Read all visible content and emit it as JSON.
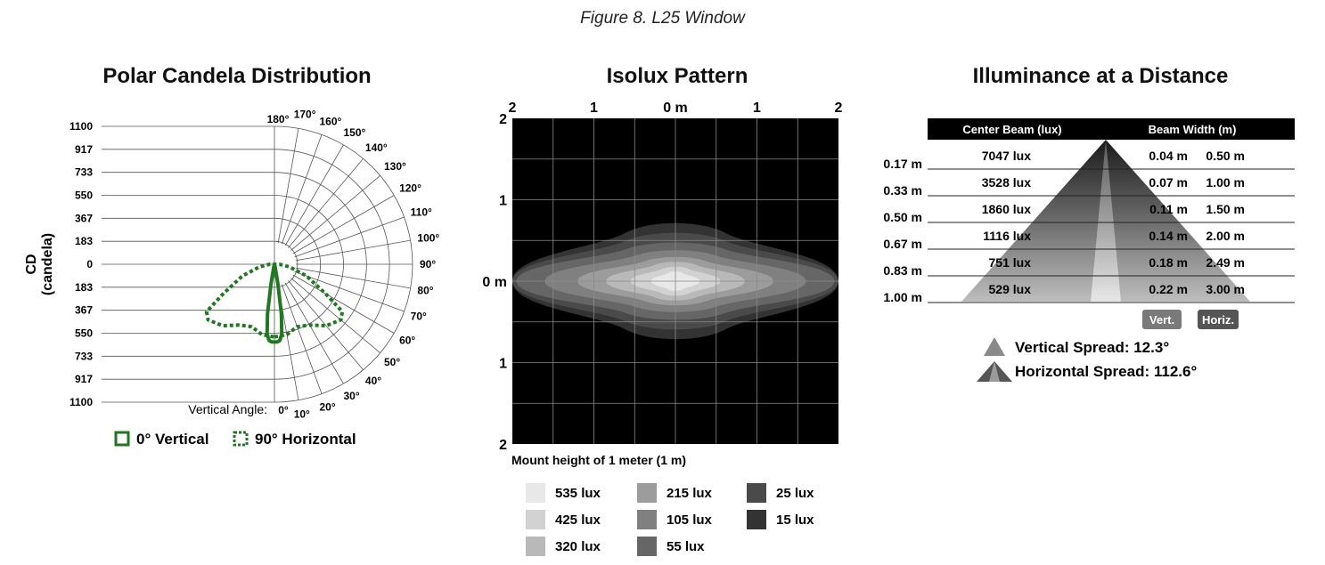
{
  "figure_caption": "Figure 8. L25 Window",
  "panels": {
    "polar_title": "Polar Candela Distribution",
    "isolux_title": "Isolux Pattern",
    "illum_title": "Illuminance at a Distance"
  },
  "colors": {
    "series_green": "#1f7a1f",
    "isolux_bg": "#000000",
    "header_bg": "#000000"
  },
  "chart_data": [
    {
      "type": "polar",
      "title": "Polar Candela Distribution",
      "ylabel_line1": "CD",
      "ylabel_line2": "(candela)",
      "radial_ticks_top": [
        "1100",
        "917",
        "733",
        "550",
        "367",
        "183",
        "0"
      ],
      "radial_ticks_bottom": [
        "183",
        "367",
        "550",
        "733",
        "917",
        "1100"
      ],
      "rmax": 1100,
      "angle_ticks": [
        "0°",
        "10°",
        "20°",
        "30°",
        "40°",
        "50°",
        "60°",
        "70°",
        "80°",
        "90°",
        "100°",
        "110°",
        "120°",
        "130°",
        "140°",
        "150°",
        "160°",
        "170°",
        "180°"
      ],
      "angle_axis_label": "Vertical Angle:",
      "legend_position": "bottom",
      "series": [
        {
          "name": "0° Vertical",
          "style": "solid",
          "points": [
            [
              0,
              620
            ],
            [
              2,
              620
            ],
            [
              4,
              610
            ],
            [
              6,
              560
            ],
            [
              8,
              400
            ],
            [
              10,
              160
            ],
            [
              15,
              20
            ],
            [
              90,
              0
            ]
          ]
        },
        {
          "name": "90° Horizontal",
          "style": "dotted",
          "points": [
            [
              0,
              580
            ],
            [
              10,
              570
            ],
            [
              20,
              530
            ],
            [
              30,
              560
            ],
            [
              40,
              640
            ],
            [
              50,
              690
            ],
            [
              55,
              660
            ],
            [
              60,
              470
            ],
            [
              70,
              270
            ],
            [
              80,
              120
            ],
            [
              90,
              40
            ],
            [
              100,
              0
            ]
          ]
        }
      ]
    },
    {
      "type": "heatmap",
      "title": "Isolux Pattern",
      "x_ticks": [
        "2",
        "1",
        "0 m",
        "1",
        "2"
      ],
      "y_ticks": [
        "2",
        "1",
        "0 m",
        "1",
        "2"
      ],
      "xlim": [
        -2,
        2
      ],
      "ylim": [
        -2,
        2
      ],
      "note": "Mount height of 1 meter (1 m)",
      "contours": [
        {
          "lux": 15,
          "label": "15 lux",
          "color": "#333333",
          "half_width": 2.0,
          "half_height": 0.6
        },
        {
          "lux": 25,
          "label": "25 lux",
          "color": "#4a4a4a",
          "half_width": 2.0,
          "half_height": 0.5
        },
        {
          "lux": 55,
          "label": "55 lux",
          "color": "#666666",
          "half_width": 1.95,
          "half_height": 0.4
        },
        {
          "lux": 105,
          "label": "105 lux",
          "color": "#808080",
          "half_width": 1.6,
          "half_height": 0.32
        },
        {
          "lux": 215,
          "label": "215 lux",
          "color": "#9c9c9c",
          "half_width": 1.2,
          "half_height": 0.25
        },
        {
          "lux": 320,
          "label": "320 lux",
          "color": "#b9b9b9",
          "half_width": 0.85,
          "half_height": 0.2
        },
        {
          "lux": 425,
          "label": "425 lux",
          "color": "#d2d2d2",
          "half_width": 0.55,
          "half_height": 0.15
        },
        {
          "lux": 535,
          "label": "535 lux",
          "color": "#e8e8e8",
          "half_width": 0.3,
          "half_height": 0.1
        }
      ],
      "legend_order": [
        "535 lux",
        "425 lux",
        "320 lux",
        "215 lux",
        "105 lux",
        "55 lux",
        "25 lux",
        "15 lux"
      ]
    },
    {
      "type": "table",
      "title": "Illuminance at a Distance",
      "columns": [
        "Center Beam (lux)",
        "Beam Width (m)"
      ],
      "rows": [
        {
          "distance": "0.17 m",
          "lux": "7047 lux",
          "vert": "0.04 m",
          "horiz": "0.50 m"
        },
        {
          "distance": "0.33 m",
          "lux": "3528 lux",
          "vert": "0.07 m",
          "horiz": "1.00 m"
        },
        {
          "distance": "0.50 m",
          "lux": "1860 lux",
          "vert": "0.11 m",
          "horiz": "1.50 m"
        },
        {
          "distance": "0.67 m",
          "lux": "1116 lux",
          "vert": "0.14 m",
          "horiz": "2.00 m"
        },
        {
          "distance": "0.83 m",
          "lux": "751 lux",
          "vert": "0.18 m",
          "horiz": "2.49 m"
        },
        {
          "distance": "1.00 m",
          "lux": "529 lux",
          "vert": "0.22 m",
          "horiz": "3.00 m"
        }
      ],
      "badges": [
        "Vert.",
        "Horiz."
      ],
      "spreads": [
        {
          "label": "Vertical Spread: 12.3°",
          "degrees": 12.3
        },
        {
          "label": "Horizontal Spread: 112.6°",
          "degrees": 112.6
        }
      ]
    }
  ]
}
